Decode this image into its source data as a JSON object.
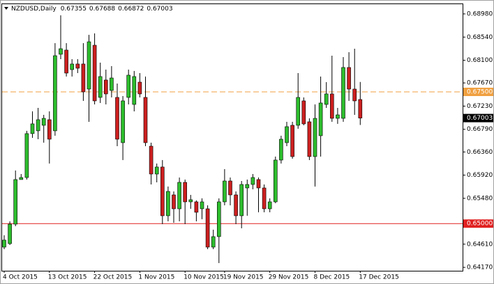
{
  "chart_data": {
    "type": "candlestick",
    "symbol": "NZDUSD,Daily",
    "categories": [
      "4 Oct 2015",
      null,
      null,
      null,
      null,
      null,
      null,
      null,
      "13 Oct 2015",
      null,
      null,
      null,
      null,
      null,
      null,
      null,
      "22 Oct 2015",
      null,
      null,
      null,
      null,
      null,
      null,
      null,
      "1 Nov 2015",
      null,
      null,
      null,
      null,
      null,
      null,
      null,
      "10 Nov 2015",
      null,
      null,
      null,
      null,
      null,
      null,
      "19 Nov 2015",
      null,
      null,
      null,
      null,
      null,
      null,
      null,
      "29 Nov 2015",
      null,
      null,
      null,
      null,
      null,
      null,
      null,
      "8 Dec 2015",
      null,
      null,
      null,
      null,
      null,
      null,
      null,
      "17 Dec 2015"
    ],
    "open": [
      0.64554,
      0.6462,
      0.6499,
      0.65836,
      0.65875,
      0.66708,
      0.66761,
      0.66866,
      0.66972,
      0.66761,
      0.68214,
      0.68293,
      0.67923,
      0.68029,
      0.68029,
      0.67553,
      0.68385,
      0.67395,
      0.67725,
      0.67527,
      0.67395,
      0.66536,
      0.67395,
      0.67262,
      0.67685,
      0.67395,
      0.6647,
      0.65941,
      0.66074,
      0.65149,
      0.65545,
      0.65281,
      0.65783,
      0.65413,
      0.65413,
      0.65281,
      0.65281,
      0.64554,
      0.64753,
      0.65413,
      0.65809,
      0.65545,
      0.65149,
      0.65677,
      0.65743,
      0.65836,
      0.65677,
      0.65281,
      0.65413,
      0.66206,
      0.66536,
      0.66866,
      0.66866,
      0.67329,
      0.66932,
      0.66272,
      0.66668,
      0.67262,
      0.67461,
      0.66998,
      0.66998,
      0.67963,
      0.67553,
      0.67355
    ],
    "high": [
      0.64779,
      0.65043,
      0.66008,
      0.65941,
      0.66761,
      0.6713,
      0.67196,
      0.67064,
      0.6713,
      0.68425,
      0.68953,
      0.68425,
      0.68121,
      0.68121,
      0.68425,
      0.68583,
      0.6861,
      0.68055,
      0.67923,
      0.67989,
      0.67659,
      0.67421,
      0.67923,
      0.67897,
      0.67857,
      0.67791,
      0.66536,
      0.6614,
      0.66206,
      0.65704,
      0.65611,
      0.65875,
      0.65836,
      0.65545,
      0.6544,
      0.65479,
      0.65347,
      0.64885,
      0.65479,
      0.66034,
      0.65875,
      0.65611,
      0.65809,
      0.65836,
      0.65941,
      0.65875,
      0.65743,
      0.65479,
      0.66272,
      0.66668,
      0.66932,
      0.66932,
      0.67857,
      0.67395,
      0.66998,
      0.67262,
      0.67791,
      0.67685,
      0.68187,
      0.67196,
      0.68161,
      0.68253,
      0.68319,
      0.67688
    ],
    "low": [
      0.64515,
      0.64594,
      0.64951,
      0.65836,
      0.65836,
      0.66628,
      0.66602,
      0.66536,
      0.6614,
      0.66668,
      0.68121,
      0.67791,
      0.67791,
      0.67857,
      0.67329,
      0.66932,
      0.67262,
      0.67289,
      0.67262,
      0.67395,
      0.6647,
      0.66206,
      0.67262,
      0.6713,
      0.67395,
      0.6647,
      0.65743,
      0.65783,
      0.6499,
      0.65043,
      0.65017,
      0.65043,
      0.6499,
      0.65281,
      0.65043,
      0.65083,
      0.64515,
      0.64515,
      0.64251,
      0.65347,
      0.65347,
      0.6499,
      0.64911,
      0.65149,
      0.65651,
      0.65215,
      0.65215,
      0.65215,
      0.65387,
      0.6614,
      0.6647,
      0.66232,
      0.668,
      0.66866,
      0.66206,
      0.65704,
      0.66272,
      0.67196,
      0.66932,
      0.66893,
      0.66932,
      0.67329,
      0.67064,
      0.66872
    ],
    "close": [
      0.64687,
      0.6499,
      0.65836,
      0.65875,
      0.66708,
      0.66893,
      0.66972,
      0.66998,
      0.66602,
      0.68187,
      0.68319,
      0.67857,
      0.68029,
      0.67949,
      0.675,
      0.68451,
      0.67329,
      0.67791,
      0.67461,
      0.67764,
      0.66602,
      0.67329,
      0.67817,
      0.67791,
      0.67461,
      0.66536,
      0.65941,
      0.66074,
      0.65149,
      0.65611,
      0.65281,
      0.65783,
      0.65413,
      0.65453,
      0.65215,
      0.65413,
      0.64554,
      0.64753,
      0.65413,
      0.65809,
      0.65545,
      0.65149,
      0.65743,
      0.65743,
      0.65875,
      0.65677,
      0.65281,
      0.65413,
      0.66206,
      0.66602,
      0.6684,
      0.66272,
      0.67395,
      0.66893,
      0.66272,
      0.66998,
      0.67289,
      0.67461,
      0.66998,
      0.67064,
      0.67963,
      0.67553,
      0.67329,
      0.67003
    ],
    "up_color": "#2dbd2d",
    "down_color": "#cc1f1f",
    "ylim": [
      0.64118,
      0.69138
    ],
    "yticks": [
      {
        "value": 0.6898,
        "label": "0.68980"
      },
      {
        "value": 0.6854,
        "label": "0.68540"
      },
      {
        "value": 0.681,
        "label": "0.68100"
      },
      {
        "value": 0.6767,
        "label": "0.67670"
      },
      {
        "value": 0.6723,
        "label": "0.67230"
      },
      {
        "value": 0.6679,
        "label": "0.66790"
      },
      {
        "value": 0.6636,
        "label": "0.66360"
      },
      {
        "value": 0.6592,
        "label": "0.65920"
      },
      {
        "value": 0.6548,
        "label": "0.65480"
      },
      {
        "value": 0.6461,
        "label": "0.64610"
      },
      {
        "value": 0.6417,
        "label": "0.64170"
      }
    ],
    "levels": [
      {
        "value": 0.675,
        "label": "0.67500",
        "color": "#f0a040",
        "style": "dashed"
      },
      {
        "value": 0.65,
        "label": "0.65000",
        "color": "#e02020",
        "style": "solid"
      }
    ],
    "grid": false
  }
}
